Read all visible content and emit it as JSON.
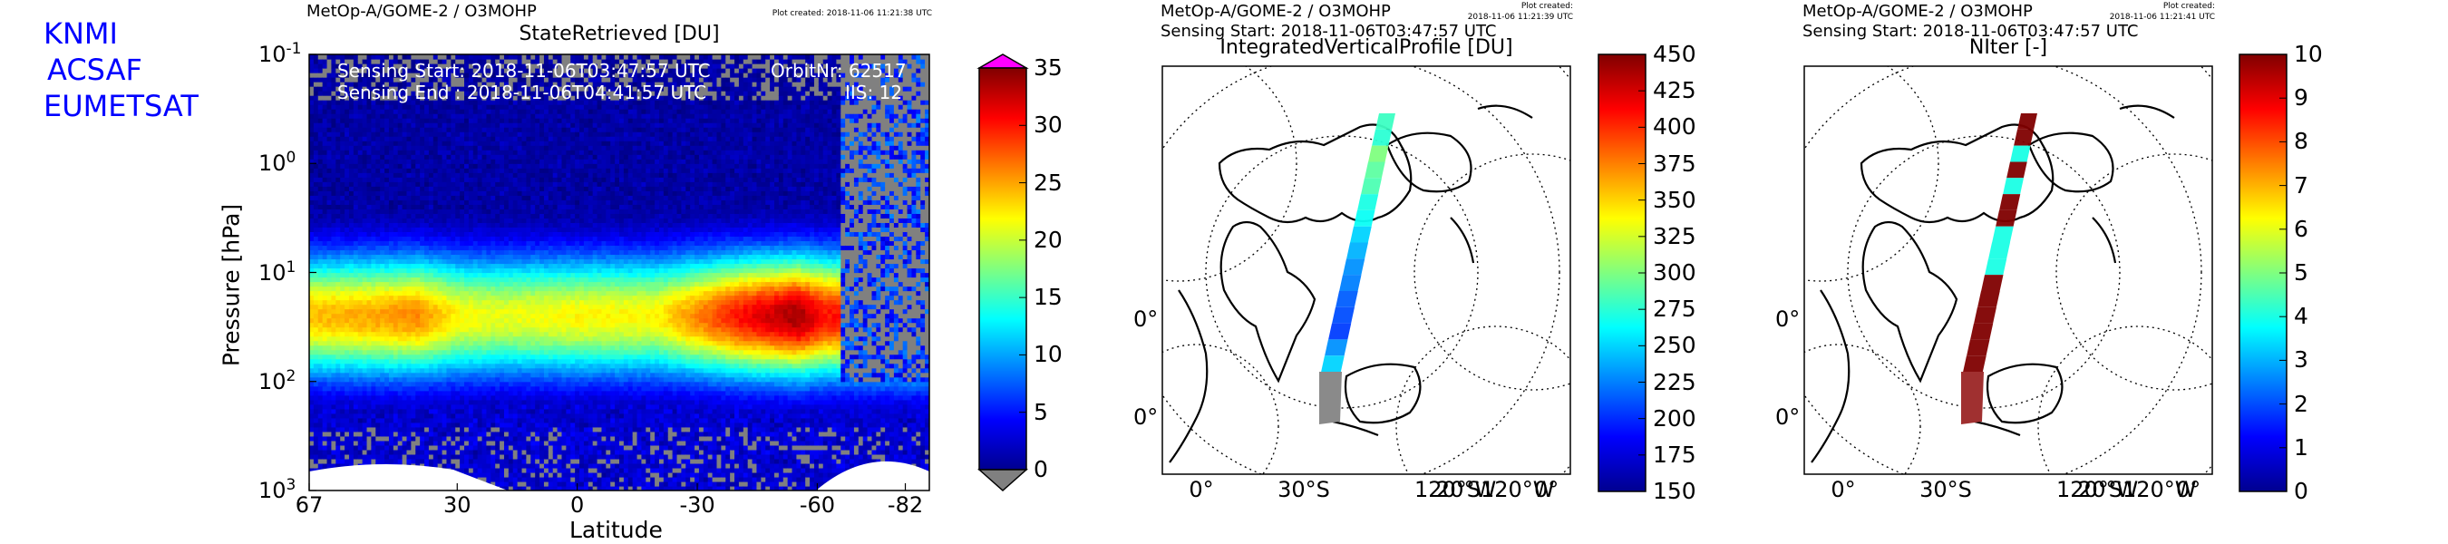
{
  "branding": [
    "KNMI",
    "ACSAF",
    "EUMETSAT"
  ],
  "chart_data": [
    {
      "type": "heatmap",
      "header": "MetOp-A/GOME-2 / O3MOHP",
      "plot_created": "Plot created: 2018-11-06 11:21:38 UTC",
      "title": "StateRetrieved [DU]",
      "xlabel": "Latitude",
      "ylabel": "Pressure [hPa]",
      "x_ticks": [
        "67",
        "30",
        "0",
        "-30",
        "-60",
        "-82"
      ],
      "x_tick_values": [
        67,
        30,
        0,
        -30,
        -60,
        -82
      ],
      "xlim": [
        67,
        -88
      ],
      "y_scale": "log",
      "ylim": [
        1000,
        0.1
      ],
      "y_ticks": [
        {
          "base": "10",
          "exp": "-1",
          "value": 0.1
        },
        {
          "base": "10",
          "exp": "0",
          "value": 1
        },
        {
          "base": "10",
          "exp": "1",
          "value": 10
        },
        {
          "base": "10",
          "exp": "2",
          "value": 100
        },
        {
          "base": "10",
          "exp": "3",
          "value": 1000
        }
      ],
      "info": {
        "sensing_start": "Sensing Start: 2018-11-06T03:47:57 UTC",
        "sensing_end": "Sensing End  : 2018-11-06T04:41:57 UTC",
        "orbit": "OrbitNr: 62517",
        "iis": "IIS: 12"
      },
      "colorbar": {
        "min": 0,
        "max": 35,
        "ticks": [
          "35",
          "30",
          "25",
          "20",
          "15",
          "10",
          "5",
          "0"
        ],
        "tick_values": [
          35,
          30,
          25,
          20,
          15,
          10,
          5,
          0
        ],
        "over_color": "#ff00ff",
        "under_color": "#808080"
      },
      "ozone_layer": {
        "peak_pressure_hpa": 25,
        "peak_values_du": {
          "north": 23,
          "equator": 22,
          "south_midlat": 33
        },
        "latitude_profile": [
          {
            "lat": 67,
            "peak": 24
          },
          {
            "lat": 50,
            "peak": 25
          },
          {
            "lat": 40,
            "peak": 26
          },
          {
            "lat": 30,
            "peak": 22
          },
          {
            "lat": 20,
            "peak": 21
          },
          {
            "lat": 0,
            "peak": 22
          },
          {
            "lat": -20,
            "peak": 22
          },
          {
            "lat": -40,
            "peak": 30
          },
          {
            "lat": -55,
            "peak": 34
          },
          {
            "lat": -62,
            "peak": 30
          }
        ]
      }
    },
    {
      "type": "map",
      "header": "MetOp-A/GOME-2 / O3MOHP",
      "subheader": "Sensing Start: 2018-11-06T03:47:57 UTC",
      "plot_created": "Plot created:",
      "plot_created_time": "2018-11-06 11:21:39 UTC",
      "title": "IntegratedVerticalProfile [DU]",
      "left_labels": [
        "0°",
        "0°"
      ],
      "bottom_labels": [
        "0°",
        "30°S",
        "120°S",
        "20°W",
        "120°W",
        "0°"
      ],
      "colorbar": {
        "min": 150,
        "max": 450,
        "ticks": [
          "450",
          "425",
          "400",
          "375",
          "350",
          "325",
          "300",
          "275",
          "250",
          "225",
          "200",
          "175",
          "150"
        ],
        "tick_values": [
          450,
          425,
          400,
          375,
          350,
          325,
          300,
          275,
          250,
          225,
          200,
          175,
          150
        ]
      },
      "swath_values": [
        280,
        275,
        300,
        290,
        285,
        270,
        265,
        250,
        240,
        230,
        225,
        215,
        210,
        205,
        230,
        250
      ]
    },
    {
      "type": "map",
      "header": "MetOp-A/GOME-2 / O3MOHP",
      "subheader": "Sensing Start: 2018-11-06T03:47:57 UTC",
      "plot_created": "Plot created:",
      "plot_created_time": "2018-11-06 11:21:41 UTC",
      "title": "NIter [-]",
      "left_labels": [
        "0°",
        "0°"
      ],
      "bottom_labels": [
        "0°",
        "30°S",
        "120°S",
        "20°W",
        "120°W",
        "0°"
      ],
      "colorbar": {
        "min": 0,
        "max": 10,
        "ticks": [
          "10",
          "9",
          "8",
          "7",
          "6",
          "5",
          "4",
          "3",
          "2",
          "1",
          "0"
        ],
        "tick_values": [
          10,
          9,
          8,
          7,
          6,
          5,
          4,
          3,
          2,
          1,
          0
        ]
      },
      "swath_values": [
        10,
        10,
        4,
        10,
        4,
        10,
        10,
        4,
        4,
        4,
        10,
        10,
        10,
        10,
        10,
        10
      ]
    }
  ]
}
